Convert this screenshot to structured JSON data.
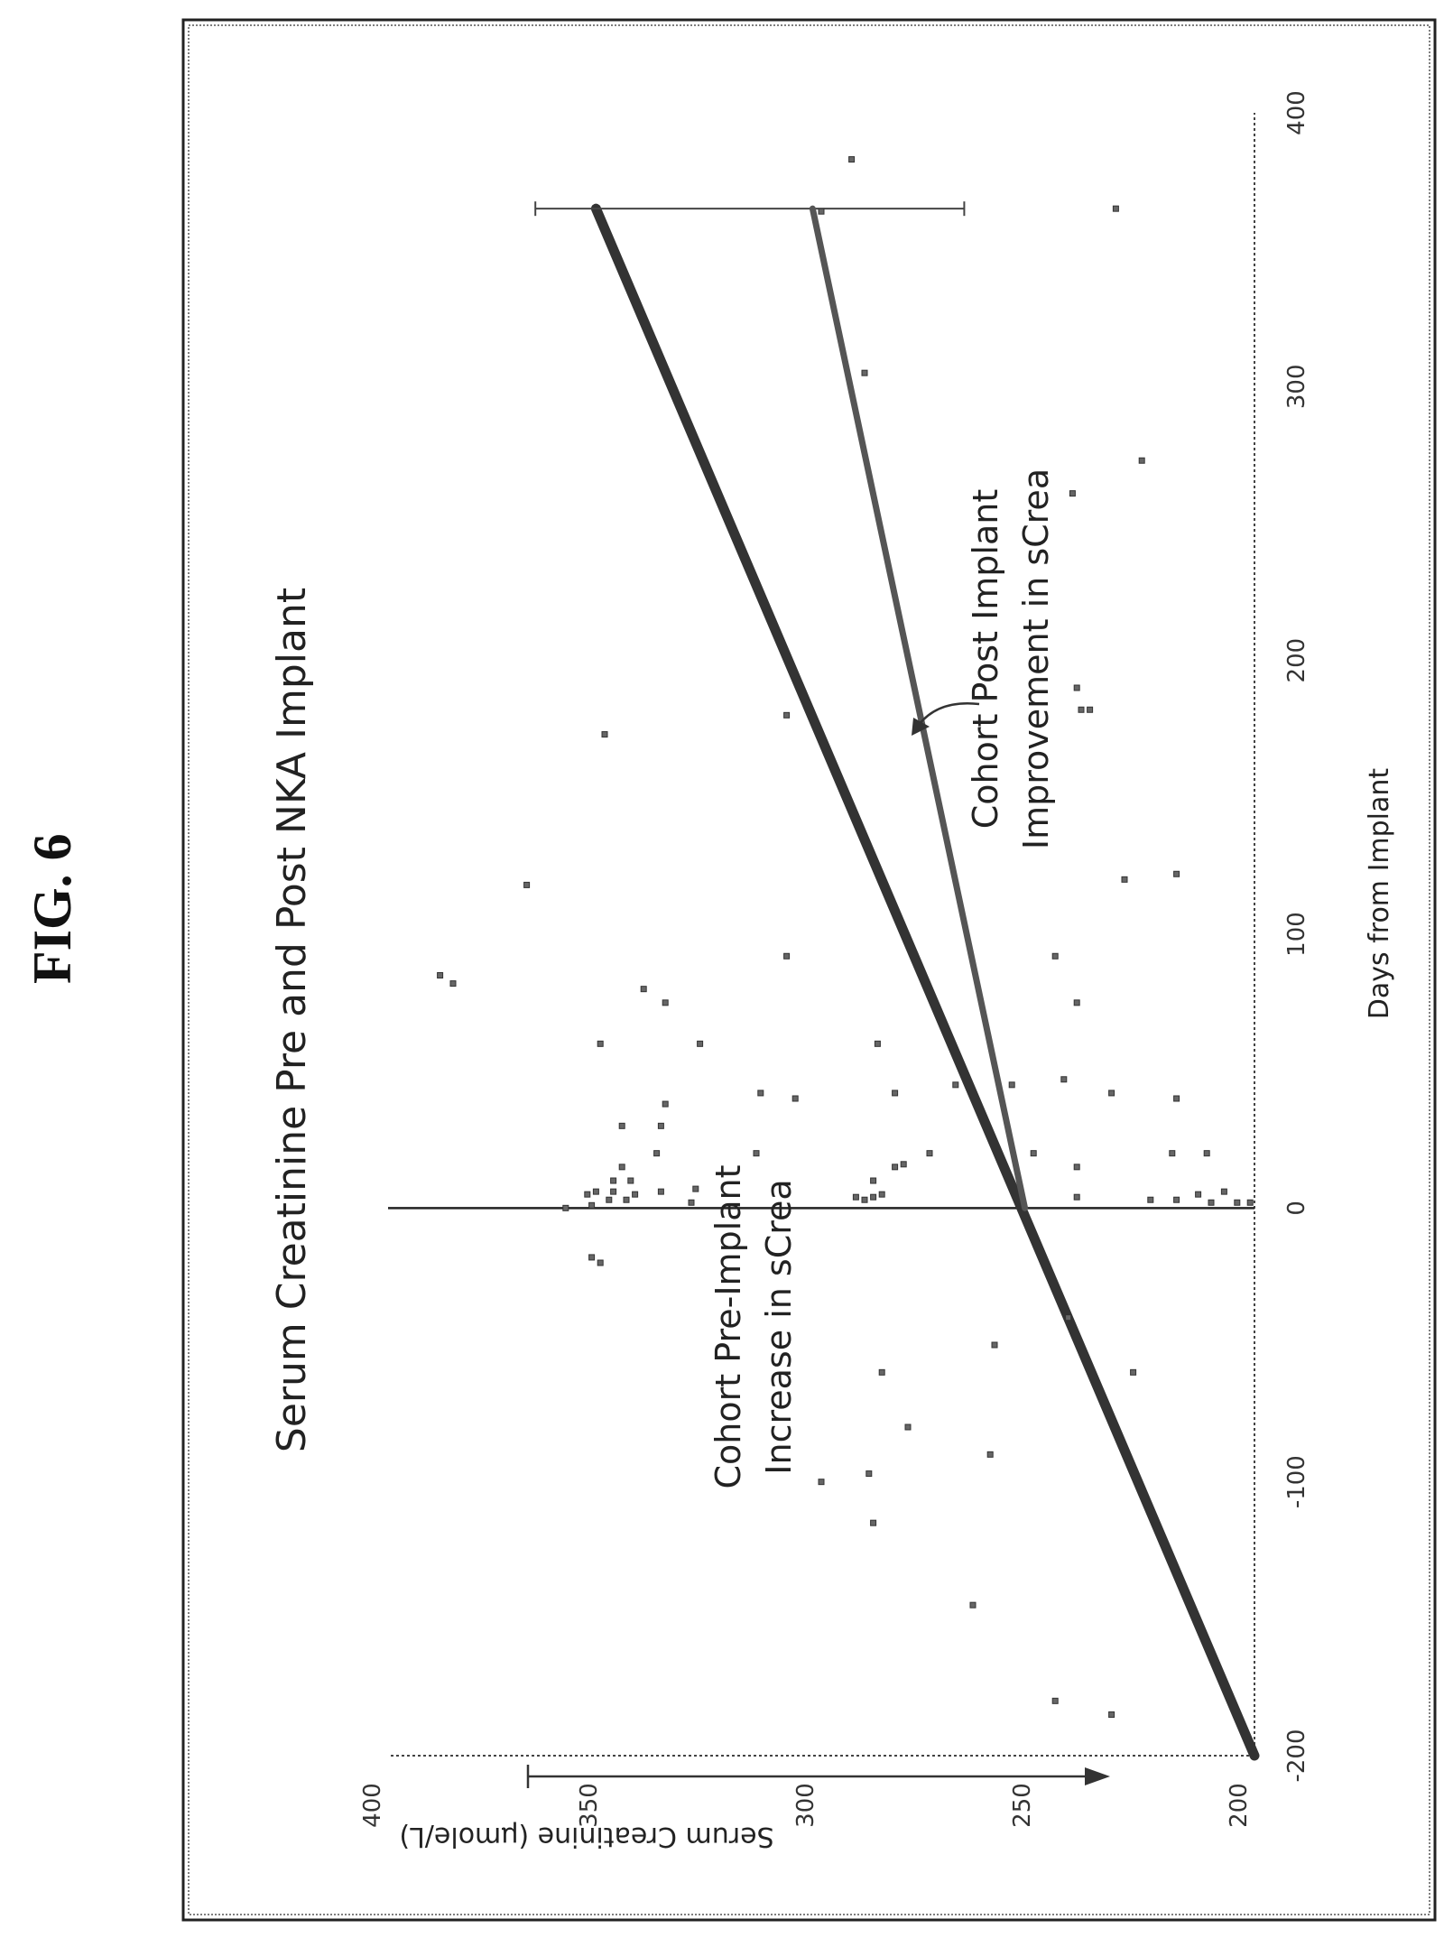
{
  "figure": {
    "label": "FIG. 6"
  },
  "chart_data": {
    "type": "scatter",
    "title": "Serum Creatinine Pre and Post NKA Implant",
    "xlabel": "Days from Implant",
    "ylabel": "Serum Creatinine (μmole/L)",
    "xlim": [
      -200,
      400
    ],
    "ylim": [
      200,
      400
    ],
    "xticks": [
      -200,
      -100,
      0,
      100,
      200,
      300,
      400
    ],
    "yticks": [
      200,
      250,
      300,
      350,
      400
    ],
    "xtick_labels": [
      "-200",
      "-100",
      "0",
      "100",
      "200",
      "300",
      "400"
    ],
    "ytick_labels": [
      "200",
      "250",
      "300",
      "350",
      "400"
    ],
    "annotations": {
      "pre": [
        "Cohort Pre-Implant",
        "Increase in sCrea"
      ],
      "post": [
        "Cohort Post Implant",
        "Improvement in sCrea"
      ]
    },
    "trend_lines": [
      {
        "label": "Cohort Pre-Implant Increase in sCrea",
        "x": [
          -200,
          365
        ],
        "y": [
          200,
          352
        ],
        "error_bar": [
          267,
          366
        ]
      },
      {
        "label": "Cohort Post Implant Improvement in sCrea",
        "x": [
          0,
          365
        ],
        "y": [
          253,
          302
        ]
      }
    ],
    "points": [
      [
        -185,
        233
      ],
      [
        -180,
        246
      ],
      [
        -145,
        265
      ],
      [
        -115,
        288
      ],
      [
        -100,
        300
      ],
      [
        -97,
        289
      ],
      [
        -90,
        261
      ],
      [
        -80,
        280
      ],
      [
        -60,
        286
      ],
      [
        -60,
        228
      ],
      [
        -50,
        260
      ],
      [
        -40,
        243
      ],
      [
        -20,
        351
      ],
      [
        -18,
        353
      ],
      [
        0,
        359
      ],
      [
        1,
        353
      ],
      [
        3,
        349
      ],
      [
        5,
        343
      ],
      [
        6,
        348
      ],
      [
        5,
        354
      ],
      [
        6,
        352
      ],
      [
        10,
        348
      ],
      [
        10,
        344
      ],
      [
        6,
        337
      ],
      [
        7,
        329
      ],
      [
        2,
        330
      ],
      [
        3,
        345
      ],
      [
        4,
        292
      ],
      [
        3,
        290
      ],
      [
        4,
        288
      ],
      [
        5,
        286
      ],
      [
        4,
        241
      ],
      [
        3,
        224
      ],
      [
        3,
        218
      ],
      [
        5,
        213
      ],
      [
        2,
        210
      ],
      [
        6,
        207
      ],
      [
        2,
        204
      ],
      [
        2,
        201
      ],
      [
        15,
        346
      ],
      [
        20,
        338
      ],
      [
        20,
        315
      ],
      [
        10,
        288
      ],
      [
        15,
        283
      ],
      [
        20,
        251
      ],
      [
        16,
        281
      ],
      [
        20,
        275
      ],
      [
        15,
        241
      ],
      [
        20,
        211
      ],
      [
        20,
        219
      ],
      [
        30,
        337
      ],
      [
        30,
        346
      ],
      [
        38,
        336
      ],
      [
        40,
        306
      ],
      [
        42,
        283
      ],
      [
        42,
        314
      ],
      [
        45,
        269
      ],
      [
        45,
        256
      ],
      [
        47,
        244
      ],
      [
        40,
        218
      ],
      [
        42,
        233
      ],
      [
        60,
        287
      ],
      [
        60,
        328
      ],
      [
        60,
        351
      ],
      [
        75,
        336
      ],
      [
        75,
        241
      ],
      [
        80,
        341
      ],
      [
        82,
        385
      ],
      [
        85,
        388
      ],
      [
        92,
        308
      ],
      [
        92,
        246
      ],
      [
        118,
        368
      ],
      [
        120,
        230
      ],
      [
        122,
        218
      ],
      [
        173,
        350
      ],
      [
        180,
        308
      ],
      [
        182,
        240
      ],
      [
        182,
        238
      ],
      [
        190,
        241
      ],
      [
        261,
        242
      ],
      [
        273,
        226
      ],
      [
        305,
        290
      ],
      [
        364,
        300
      ],
      [
        365,
        232
      ],
      [
        383,
        293
      ]
    ]
  }
}
